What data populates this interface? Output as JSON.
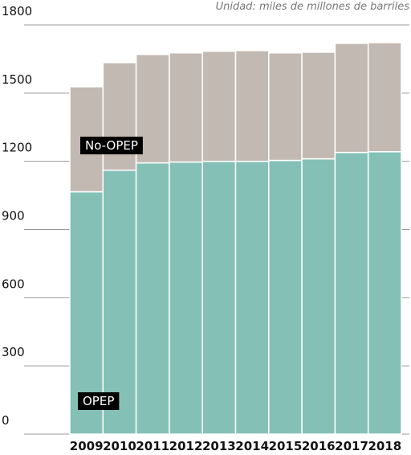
{
  "chart_data": {
    "type": "stacked_bar",
    "subtitle": "Unidad: miles de millones de barriles",
    "categories": [
      "2009",
      "2010",
      "2011",
      "2012",
      "2013",
      "2014",
      "2015",
      "2016",
      "2017",
      "2018"
    ],
    "series": [
      {
        "name": "OPEP",
        "color": "#84c0b5",
        "values": [
          1066,
          1161,
          1193,
          1197,
          1200,
          1200,
          1204,
          1211,
          1239,
          1242
        ]
      },
      {
        "name": "No-OPEP",
        "color": "#c2b9b2",
        "values": [
          462,
          473,
          477,
          480,
          484,
          487,
          473,
          469,
          480,
          480
        ]
      }
    ],
    "ylim": [
      0,
      1800
    ],
    "yticks": [
      0,
      300,
      600,
      900,
      1200,
      1500,
      1800
    ],
    "grid": true
  }
}
